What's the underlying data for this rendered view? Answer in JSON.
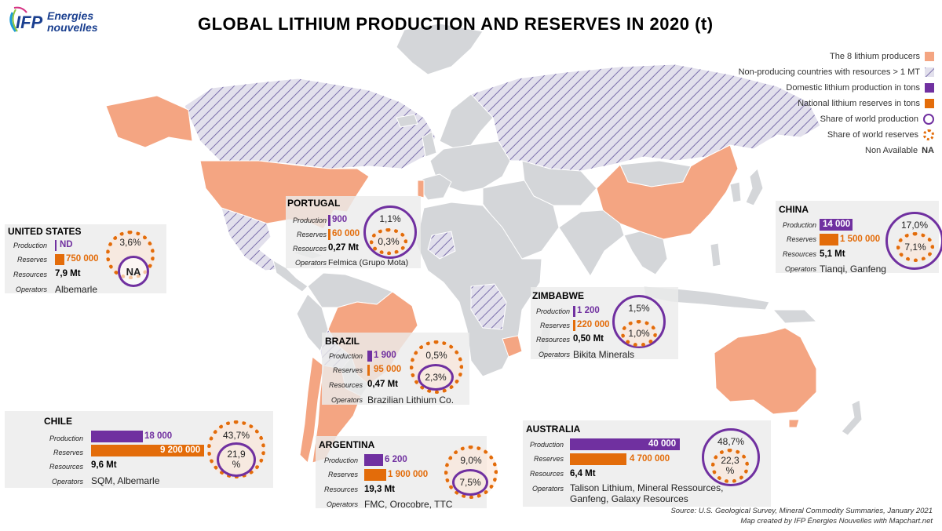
{
  "logo": {
    "brand": "IFP",
    "line1": "Energies",
    "line2": "nouvelles"
  },
  "title": "GLOBAL LITHIUM  PRODUCTION  AND  RESERVES IN 2020  (t)",
  "colors": {
    "producer": "#f4a582",
    "land": "#d4d6d9",
    "hatch": "#7b6fab",
    "production": "#7030a0",
    "reserves": "#e36c0a",
    "ocean": "#ffffff"
  },
  "legend": [
    {
      "text": "The 8 lithium producers",
      "key": "producer"
    },
    {
      "text": "Non-producing countries with resources > 1 MT",
      "key": "hatch"
    },
    {
      "text": "Domestic lithium production in tons",
      "key": "production"
    },
    {
      "text": "National lithium reserves in tons",
      "key": "reserves"
    },
    {
      "text": "Share of world production",
      "key": "prod-ring"
    },
    {
      "text": "Share of world reserves",
      "key": "res-ring"
    },
    {
      "text": "Non Available",
      "key": "na",
      "label": "NA"
    }
  ],
  "labels": {
    "production": "Production",
    "reserves": "Reserves",
    "resources": "Resources",
    "operators": "Operators"
  },
  "countries": {
    "us": {
      "name": "UNITED STATES",
      "production": "ND",
      "reserves": "750 000",
      "resources": "7,9 Mt",
      "operators": "Albemarle",
      "share_prod": "NA",
      "share_res": "3,6%"
    },
    "portugal": {
      "name": "PORTUGAL",
      "production": "900",
      "reserves": "60 000",
      "resources": "0,27 Mt",
      "operators": "Felmica (Grupo Mota)",
      "share_prod": "1,1%",
      "share_res": "0,3%"
    },
    "china": {
      "name": "CHINA",
      "production": "14 000",
      "reserves": "1 500 000",
      "resources": "5,1 Mt",
      "operators": "Tianqi, Ganfeng",
      "share_prod": "17,0%",
      "share_res": "7,1%"
    },
    "zimbabwe": {
      "name": "ZIMBABWE",
      "production": "1 200",
      "reserves": "220 000",
      "resources": "0,50 Mt",
      "operators": "Bikita Minerals",
      "share_prod": "1,5%",
      "share_res": "1,0%"
    },
    "brazil": {
      "name": "BRAZIL",
      "production": "1 900",
      "reserves": "95 000",
      "resources": "0,47 Mt",
      "operators": "Brazilian Lithium Co.",
      "share_prod": "2,3%",
      "share_res": "0,5%"
    },
    "chile": {
      "name": "CHILE",
      "production": "18 000",
      "reserves": "9 200 000",
      "resources": "9,6 Mt",
      "operators": "SQM, Albemarle",
      "share_prod": "21,9 %",
      "share_res": "43,7%"
    },
    "argentina": {
      "name": "ARGENTINA",
      "production": "6 200",
      "reserves": "1 900 000",
      "resources": "19,3 Mt",
      "operators": "FMC, Orocobre, TTC",
      "share_prod": "7,5%",
      "share_res": "9,0%"
    },
    "australia": {
      "name": "AUSTRALIA",
      "production": "40 000",
      "reserves": "4 700 000",
      "resources": "6,4 Mt",
      "operators1": "Talison Lithium, Mineral Ressources,",
      "operators2": "Ganfeng, Galaxy Resources",
      "share_prod": "48,7%",
      "share_res": "22,3 %"
    }
  },
  "source": {
    "line1": "Source: U.S. Geological Survey, Mineral Commodity Summaries, January 2021",
    "line2": "Map created by IFP Énergies Nouvelles with Mapchart.net"
  }
}
